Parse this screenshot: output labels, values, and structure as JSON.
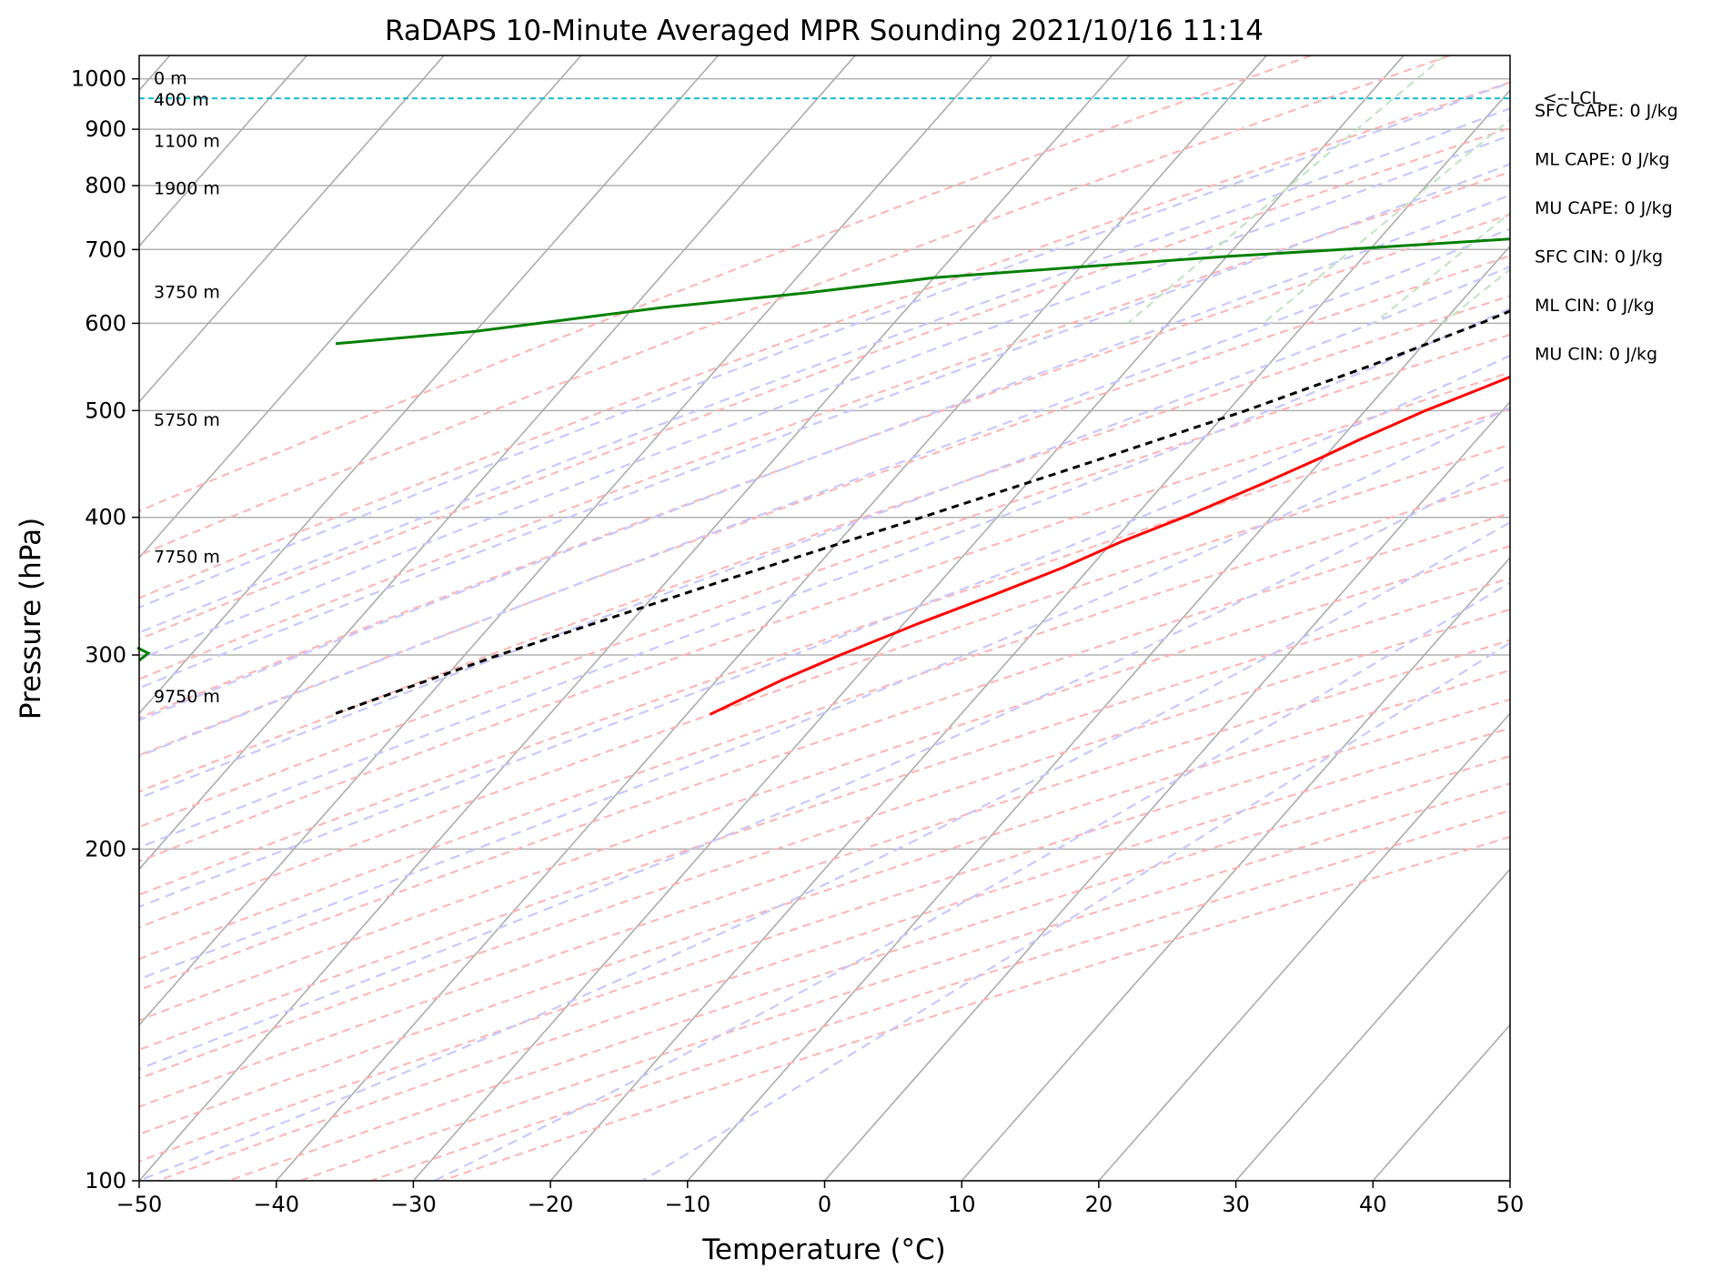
{
  "chart_data": {
    "type": "line",
    "title": "RaDAPS 10-Minute Averaged MPR Sounding 2021/10/16 11:14",
    "xlabel": "Temperature (°C)",
    "ylabel": "Pressure (hPa)",
    "xlim": [
      -50,
      50
    ],
    "ylim": [
      1050,
      100
    ],
    "y_scale": "log",
    "skew": "skew-T log-P",
    "grid": true,
    "x_ticks": [
      "−50",
      "−40",
      "−30",
      "−20",
      "−10",
      "0",
      "10",
      "20",
      "30",
      "40",
      "50"
    ],
    "x_tick_values": [
      -50,
      -40,
      -30,
      -20,
      -10,
      0,
      10,
      20,
      30,
      40,
      50
    ],
    "y_ticks": [
      "100",
      "200",
      "300",
      "400",
      "500",
      "600",
      "700",
      "800",
      "900",
      "1000"
    ],
    "y_tick_values": [
      100,
      200,
      300,
      400,
      500,
      600,
      700,
      800,
      900,
      1000
    ],
    "height_labels": [
      {
        "text": "9750 m",
        "p": 275
      },
      {
        "text": "7750 m",
        "p": 368
      },
      {
        "text": "5750 m",
        "p": 490
      },
      {
        "text": "3750 m",
        "p": 640
      },
      {
        "text": "1900 m",
        "p": 795
      },
      {
        "text": "1100 m",
        "p": 877
      },
      {
        "text": "400 m",
        "p": 957
      },
      {
        "text": "0 m",
        "p": 1000
      }
    ],
    "indices": [
      "SFC CAPE: 0 J/kg",
      "ML CAPE: 0 J/kg",
      "MU CAPE: 0 J/kg",
      "SFC CIN: 0 J/kg",
      "ML CIN: 0 J/kg",
      "MU CIN: 0 J/kg"
    ],
    "lcl": {
      "label": "<--LCL",
      "p": 960,
      "color": "#17becf"
    },
    "series": [
      {
        "role": "temperature",
        "color": "#ff0000",
        "points": [
          [
            1000,
            15.4
          ],
          [
            995,
            14.2
          ],
          [
            990,
            13.2
          ],
          [
            980,
            12.5
          ],
          [
            960,
            13.2
          ],
          [
            930,
            13.8
          ],
          [
            900,
            13.0
          ],
          [
            870,
            12.1
          ],
          [
            840,
            11.4
          ],
          [
            800,
            10.5
          ],
          [
            760,
            9.5
          ],
          [
            730,
            9.0
          ],
          [
            700,
            8.4
          ],
          [
            670,
            7.6
          ],
          [
            640,
            5.6
          ],
          [
            600,
            3.3
          ],
          [
            570,
            1.2
          ],
          [
            550,
            -0.2
          ],
          [
            525,
            -2.8
          ],
          [
            500,
            -5.6
          ],
          [
            470,
            -8.6
          ],
          [
            455,
            -10.0
          ],
          [
            430,
            -12.7
          ],
          [
            400,
            -16.4
          ],
          [
            380,
            -19.4
          ],
          [
            360,
            -22.0
          ],
          [
            340,
            -25.3
          ],
          [
            320,
            -29.0
          ],
          [
            300,
            -32.6
          ],
          [
            285,
            -35.2
          ],
          [
            265,
            -38.3
          ]
        ]
      },
      {
        "role": "dewpoint",
        "color": "#008000",
        "points": [
          [
            990,
            12.7
          ],
          [
            980,
            13.0
          ],
          [
            965,
            14.2
          ],
          [
            955,
            14.3
          ],
          [
            945,
            14.6
          ],
          [
            930,
            14.5
          ],
          [
            910,
            13.6
          ],
          [
            880,
            11.7
          ],
          [
            860,
            10.3
          ],
          [
            850,
            10.6
          ],
          [
            830,
            9.6
          ],
          [
            810,
            8.7
          ],
          [
            790,
            7.5
          ],
          [
            760,
            6.4
          ],
          [
            730,
            0
          ],
          [
            700,
            -22
          ],
          [
            690,
            -30
          ],
          [
            675,
            -40
          ],
          [
            660,
            -50
          ],
          [
            640,
            -58
          ],
          [
            620,
            -68
          ],
          [
            590,
            -80
          ],
          [
            575,
            -89.4
          ]
        ]
      },
      {
        "role": "parcel",
        "color": "#000000",
        "dashed": true,
        "points": [
          [
            1000,
            15.4
          ],
          [
            980,
            13.5
          ],
          [
            960,
            11.8
          ],
          [
            930,
            11.0
          ],
          [
            900,
            10.2
          ],
          [
            850,
            8.3
          ],
          [
            800,
            6.1
          ],
          [
            750,
            3.6
          ],
          [
            700,
            0.6
          ],
          [
            650,
            -2.9
          ],
          [
            600,
            -7.2
          ],
          [
            550,
            -12.4
          ],
          [
            500,
            -18.7
          ],
          [
            450,
            -26.5
          ],
          [
            400,
            -35.5
          ],
          [
            350,
            -46.0
          ],
          [
            300,
            -57.5
          ],
          [
            265,
            -65.8
          ]
        ]
      }
    ],
    "wind_barbs": [
      {
        "p": 995,
        "color": "#008000"
      },
      {
        "p": 300,
        "color": "#008000"
      }
    ],
    "reference_lines": {
      "isotherms": "grey solid",
      "dry_adiabats": "light red dashed",
      "moist_adiabats": "light blue dashed",
      "mixing_ratio": "light green dashed"
    }
  }
}
